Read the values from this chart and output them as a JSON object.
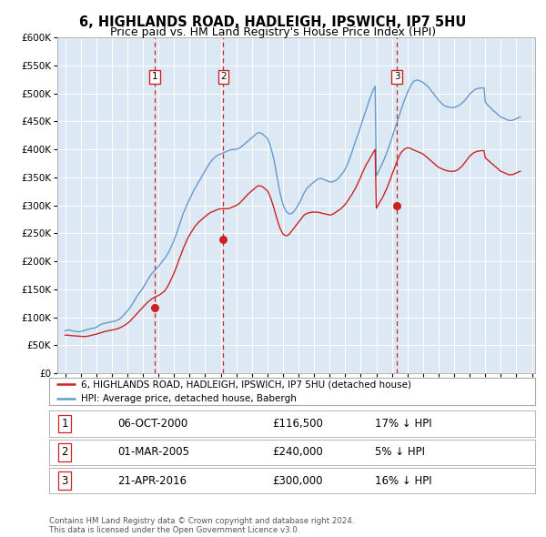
{
  "title": "6, HIGHLANDS ROAD, HADLEIGH, IPSWICH, IP7 5HU",
  "subtitle": "Price paid vs. HM Land Registry's House Price Index (HPI)",
  "background_color": "#ffffff",
  "plot_bg_color": "#dce9f5",
  "grid_color": "#ffffff",
  "hpi_color": "#6699cc",
  "price_color": "#cc2222",
  "dashed_line_color": "#cc2222",
  "sales": [
    {
      "date_num": 2000.77,
      "price": 116500,
      "label": "1"
    },
    {
      "date_num": 2005.17,
      "price": 240000,
      "label": "2"
    },
    {
      "date_num": 2016.31,
      "price": 300000,
      "label": "3"
    }
  ],
  "sale_labels_info": [
    {
      "num": "1",
      "date": "06-OCT-2000",
      "price": "£116,500",
      "pct": "17% ↓ HPI"
    },
    {
      "num": "2",
      "date": "01-MAR-2005",
      "price": "£240,000",
      "pct": "5% ↓ HPI"
    },
    {
      "num": "3",
      "date": "21-APR-2016",
      "price": "£300,000",
      "pct": "16% ↓ HPI"
    }
  ],
  "legend_entries": [
    "6, HIGHLANDS ROAD, HADLEIGH, IPSWICH, IP7 5HU (detached house)",
    "HPI: Average price, detached house, Babergh"
  ],
  "footer": "Contains HM Land Registry data © Crown copyright and database right 2024.\nThis data is licensed under the Open Government Licence v3.0.",
  "xmin": 1994.5,
  "xmax": 2025.2,
  "ymin": 0,
  "ymax": 600000,
  "yticks": [
    0,
    50000,
    100000,
    150000,
    200000,
    250000,
    300000,
    350000,
    400000,
    450000,
    500000,
    550000,
    600000
  ],
  "hpi_data_years": [
    1995.0,
    1995.08,
    1995.17,
    1995.25,
    1995.33,
    1995.42,
    1995.5,
    1995.58,
    1995.67,
    1995.75,
    1995.83,
    1995.92,
    1996.0,
    1996.08,
    1996.17,
    1996.25,
    1996.33,
    1996.42,
    1996.5,
    1996.58,
    1996.67,
    1996.75,
    1996.83,
    1996.92,
    1997.0,
    1997.08,
    1997.17,
    1997.25,
    1997.33,
    1997.42,
    1997.5,
    1997.58,
    1997.67,
    1997.75,
    1997.83,
    1997.92,
    1998.0,
    1998.08,
    1998.17,
    1998.25,
    1998.33,
    1998.42,
    1998.5,
    1998.58,
    1998.67,
    1998.75,
    1998.83,
    1998.92,
    1999.0,
    1999.08,
    1999.17,
    1999.25,
    1999.33,
    1999.42,
    1999.5,
    1999.58,
    1999.67,
    1999.75,
    1999.83,
    1999.92,
    2000.0,
    2000.08,
    2000.17,
    2000.25,
    2000.33,
    2000.42,
    2000.5,
    2000.58,
    2000.67,
    2000.75,
    2000.83,
    2000.92,
    2001.0,
    2001.08,
    2001.17,
    2001.25,
    2001.33,
    2001.42,
    2001.5,
    2001.58,
    2001.67,
    2001.75,
    2001.83,
    2001.92,
    2002.0,
    2002.08,
    2002.17,
    2002.25,
    2002.33,
    2002.42,
    2002.5,
    2002.58,
    2002.67,
    2002.75,
    2002.83,
    2002.92,
    2003.0,
    2003.08,
    2003.17,
    2003.25,
    2003.33,
    2003.42,
    2003.5,
    2003.58,
    2003.67,
    2003.75,
    2003.83,
    2003.92,
    2004.0,
    2004.08,
    2004.17,
    2004.25,
    2004.33,
    2004.42,
    2004.5,
    2004.58,
    2004.67,
    2004.75,
    2004.83,
    2004.92,
    2005.0,
    2005.08,
    2005.17,
    2005.25,
    2005.33,
    2005.42,
    2005.5,
    2005.58,
    2005.67,
    2005.75,
    2005.83,
    2005.92,
    2006.0,
    2006.08,
    2006.17,
    2006.25,
    2006.33,
    2006.42,
    2006.5,
    2006.58,
    2006.67,
    2006.75,
    2006.83,
    2006.92,
    2007.0,
    2007.08,
    2007.17,
    2007.25,
    2007.33,
    2007.42,
    2007.5,
    2007.58,
    2007.67,
    2007.75,
    2007.83,
    2007.92,
    2008.0,
    2008.08,
    2008.17,
    2008.25,
    2008.33,
    2008.42,
    2008.5,
    2008.58,
    2008.67,
    2008.75,
    2008.83,
    2008.92,
    2009.0,
    2009.08,
    2009.17,
    2009.25,
    2009.33,
    2009.42,
    2009.5,
    2009.58,
    2009.67,
    2009.75,
    2009.83,
    2009.92,
    2010.0,
    2010.08,
    2010.17,
    2010.25,
    2010.33,
    2010.42,
    2010.5,
    2010.58,
    2010.67,
    2010.75,
    2010.83,
    2010.92,
    2011.0,
    2011.08,
    2011.17,
    2011.25,
    2011.33,
    2011.42,
    2011.5,
    2011.58,
    2011.67,
    2011.75,
    2011.83,
    2011.92,
    2012.0,
    2012.08,
    2012.17,
    2012.25,
    2012.33,
    2012.42,
    2012.5,
    2012.58,
    2012.67,
    2012.75,
    2012.83,
    2012.92,
    2013.0,
    2013.08,
    2013.17,
    2013.25,
    2013.33,
    2013.42,
    2013.5,
    2013.58,
    2013.67,
    2013.75,
    2013.83,
    2013.92,
    2014.0,
    2014.08,
    2014.17,
    2014.25,
    2014.33,
    2014.42,
    2014.5,
    2014.58,
    2014.67,
    2014.75,
    2014.83,
    2014.92,
    2015.0,
    2015.08,
    2015.17,
    2015.25,
    2015.33,
    2015.42,
    2015.5,
    2015.58,
    2015.67,
    2015.75,
    2015.83,
    2015.92,
    2016.0,
    2016.08,
    2016.17,
    2016.25,
    2016.33,
    2016.42,
    2016.5,
    2016.58,
    2016.67,
    2016.75,
    2016.83,
    2016.92,
    2017.0,
    2017.08,
    2017.17,
    2017.25,
    2017.33,
    2017.42,
    2017.5,
    2017.58,
    2017.67,
    2017.75,
    2017.83,
    2017.92,
    2018.0,
    2018.08,
    2018.17,
    2018.25,
    2018.33,
    2018.42,
    2018.5,
    2018.58,
    2018.67,
    2018.75,
    2018.83,
    2018.92,
    2019.0,
    2019.08,
    2019.17,
    2019.25,
    2019.33,
    2019.42,
    2019.5,
    2019.58,
    2019.67,
    2019.75,
    2019.83,
    2019.92,
    2020.0,
    2020.08,
    2020.17,
    2020.25,
    2020.33,
    2020.42,
    2020.5,
    2020.58,
    2020.67,
    2020.75,
    2020.83,
    2020.92,
    2021.0,
    2021.08,
    2021.17,
    2021.25,
    2021.33,
    2021.42,
    2021.5,
    2021.58,
    2021.67,
    2021.75,
    2021.83,
    2021.92,
    2022.0,
    2022.08,
    2022.17,
    2022.25,
    2022.33,
    2022.42,
    2022.5,
    2022.58,
    2022.67,
    2022.75,
    2022.83,
    2022.92,
    2023.0,
    2023.08,
    2023.17,
    2023.25,
    2023.33,
    2023.42,
    2023.5,
    2023.58,
    2023.67,
    2023.75,
    2023.83,
    2023.92,
    2024.0,
    2024.08,
    2024.17,
    2024.25
  ],
  "hpi_data_values": [
    76000,
    76500,
    77000,
    77500,
    76800,
    76200,
    75600,
    75200,
    74800,
    74500,
    74200,
    74000,
    74500,
    75200,
    75800,
    76500,
    77200,
    77800,
    78500,
    79200,
    79800,
    80200,
    80600,
    81000,
    82000,
    83500,
    85000,
    86500,
    87500,
    88500,
    89000,
    89500,
    90000,
    90500,
    91000,
    91500,
    92000,
    92500,
    93000,
    93500,
    94500,
    95800,
    97000,
    99000,
    101000,
    103500,
    106000,
    108500,
    111000,
    114000,
    117000,
    120500,
    124000,
    128000,
    132000,
    136000,
    140000,
    143000,
    146000,
    149000,
    152000,
    156000,
    160000,
    164000,
    168000,
    172000,
    175500,
    178500,
    181000,
    183500,
    186000,
    188500,
    191000,
    194000,
    197000,
    200000,
    203000,
    206000,
    209000,
    213000,
    217000,
    222000,
    227000,
    232000,
    238000,
    244000,
    250000,
    257000,
    264000,
    271000,
    278000,
    285000,
    291000,
    296000,
    301000,
    306000,
    311000,
    316000,
    321000,
    326000,
    330000,
    334000,
    338000,
    342000,
    346000,
    350000,
    354000,
    358000,
    362000,
    366000,
    370000,
    374000,
    377000,
    380000,
    383000,
    385000,
    387000,
    389000,
    390000,
    391000,
    392000,
    393000,
    394000,
    395000,
    396000,
    397000,
    398000,
    399000,
    399500,
    400000,
    400000,
    400000,
    400500,
    401000,
    402000,
    403500,
    405000,
    407000,
    409000,
    411000,
    413000,
    415000,
    417000,
    419000,
    421000,
    423000,
    425000,
    427000,
    429000,
    430000,
    430000,
    429000,
    428000,
    426000,
    424000,
    422000,
    420000,
    415000,
    408000,
    400000,
    392000,
    382000,
    370000,
    357000,
    344000,
    331000,
    320000,
    310000,
    302000,
    296000,
    291000,
    288000,
    286000,
    285000,
    285000,
    286000,
    288000,
    291000,
    294000,
    298000,
    302000,
    306000,
    311000,
    316000,
    321000,
    325000,
    329000,
    332000,
    334000,
    336000,
    338000,
    340000,
    342000,
    344000,
    346000,
    347000,
    348000,
    348000,
    348000,
    347000,
    346000,
    345000,
    344000,
    343000,
    342000,
    342000,
    342000,
    343000,
    344000,
    345000,
    347000,
    349000,
    352000,
    355000,
    358000,
    361000,
    365000,
    370000,
    375000,
    381000,
    387000,
    394000,
    401000,
    408000,
    415000,
    421000,
    428000,
    435000,
    442000,
    449000,
    456000,
    463000,
    470000,
    477000,
    484000,
    491000,
    497000,
    503000,
    508000,
    513000,
    353000,
    357000,
    362000,
    367000,
    372000,
    377000,
    382000,
    388000,
    394000,
    400000,
    407000,
    414000,
    421000,
    428000,
    435000,
    442000,
    449000,
    456000,
    463000,
    470000,
    477000,
    484000,
    490000,
    496000,
    502000,
    507000,
    512000,
    516000,
    519000,
    522000,
    523000,
    524000,
    524000,
    523000,
    522000,
    521000,
    520000,
    518000,
    516000,
    514000,
    512000,
    509000,
    506000,
    503000,
    500000,
    497000,
    494000,
    491000,
    488000,
    486000,
    483000,
    481000,
    479000,
    478000,
    477000,
    476000,
    476000,
    475000,
    475000,
    475000,
    475000,
    476000,
    477000,
    478000,
    479000,
    481000,
    483000,
    485000,
    487000,
    490000,
    493000,
    496000,
    499000,
    501000,
    503000,
    505000,
    507000,
    508000,
    509000,
    509000,
    510000,
    510000,
    510000,
    510000,
    485000,
    482000,
    479000,
    477000,
    475000,
    472000,
    470000,
    468000,
    466000,
    464000,
    462000,
    460000,
    458000,
    457000,
    456000,
    455000,
    454000,
    453000,
    452000,
    452000,
    452000,
    452000,
    453000,
    454000,
    455000,
    456000,
    457000,
    458000,
    460000,
    461000,
    462000,
    463000,
    464000,
    465000,
    466000,
    467000
  ],
  "price_data_years": [
    1995.0,
    1995.08,
    1995.17,
    1995.25,
    1995.33,
    1995.42,
    1995.5,
    1995.58,
    1995.67,
    1995.75,
    1995.83,
    1995.92,
    1996.0,
    1996.08,
    1996.17,
    1996.25,
    1996.33,
    1996.42,
    1996.5,
    1996.58,
    1996.67,
    1996.75,
    1996.83,
    1996.92,
    1997.0,
    1997.08,
    1997.17,
    1997.25,
    1997.33,
    1997.42,
    1997.5,
    1997.58,
    1997.67,
    1997.75,
    1997.83,
    1997.92,
    1998.0,
    1998.08,
    1998.17,
    1998.25,
    1998.33,
    1998.42,
    1998.5,
    1998.58,
    1998.67,
    1998.75,
    1998.83,
    1998.92,
    1999.0,
    1999.08,
    1999.17,
    1999.25,
    1999.33,
    1999.42,
    1999.5,
    1999.58,
    1999.67,
    1999.75,
    1999.83,
    1999.92,
    2000.0,
    2000.08,
    2000.17,
    2000.25,
    2000.33,
    2000.42,
    2000.5,
    2000.58,
    2000.67,
    2000.75,
    2000.83,
    2000.92,
    2001.0,
    2001.08,
    2001.17,
    2001.25,
    2001.33,
    2001.42,
    2001.5,
    2001.58,
    2001.67,
    2001.75,
    2001.83,
    2001.92,
    2002.0,
    2002.08,
    2002.17,
    2002.25,
    2002.33,
    2002.42,
    2002.5,
    2002.58,
    2002.67,
    2002.75,
    2002.83,
    2002.92,
    2003.0,
    2003.08,
    2003.17,
    2003.25,
    2003.33,
    2003.42,
    2003.5,
    2003.58,
    2003.67,
    2003.75,
    2003.83,
    2003.92,
    2004.0,
    2004.08,
    2004.17,
    2004.25,
    2004.33,
    2004.42,
    2004.5,
    2004.58,
    2004.67,
    2004.75,
    2004.83,
    2004.92,
    2005.0,
    2005.08,
    2005.17,
    2005.25,
    2005.33,
    2005.42,
    2005.5,
    2005.58,
    2005.67,
    2005.75,
    2005.83,
    2005.92,
    2006.0,
    2006.08,
    2006.17,
    2006.25,
    2006.33,
    2006.42,
    2006.5,
    2006.58,
    2006.67,
    2006.75,
    2006.83,
    2006.92,
    2007.0,
    2007.08,
    2007.17,
    2007.25,
    2007.33,
    2007.42,
    2007.5,
    2007.58,
    2007.67,
    2007.75,
    2007.83,
    2007.92,
    2008.0,
    2008.08,
    2008.17,
    2008.25,
    2008.33,
    2008.42,
    2008.5,
    2008.58,
    2008.67,
    2008.75,
    2008.83,
    2008.92,
    2009.0,
    2009.08,
    2009.17,
    2009.25,
    2009.33,
    2009.42,
    2009.5,
    2009.58,
    2009.67,
    2009.75,
    2009.83,
    2009.92,
    2010.0,
    2010.08,
    2010.17,
    2010.25,
    2010.33,
    2010.42,
    2010.5,
    2010.58,
    2010.67,
    2010.75,
    2010.83,
    2010.92,
    2011.0,
    2011.08,
    2011.17,
    2011.25,
    2011.33,
    2011.42,
    2011.5,
    2011.58,
    2011.67,
    2011.75,
    2011.83,
    2011.92,
    2012.0,
    2012.08,
    2012.17,
    2012.25,
    2012.33,
    2012.42,
    2012.5,
    2012.58,
    2012.67,
    2012.75,
    2012.83,
    2012.92,
    2013.0,
    2013.08,
    2013.17,
    2013.25,
    2013.33,
    2013.42,
    2013.5,
    2013.58,
    2013.67,
    2013.75,
    2013.83,
    2013.92,
    2014.0,
    2014.08,
    2014.17,
    2014.25,
    2014.33,
    2014.42,
    2014.5,
    2014.58,
    2014.67,
    2014.75,
    2014.83,
    2014.92,
    2015.0,
    2015.08,
    2015.17,
    2015.25,
    2015.33,
    2015.42,
    2015.5,
    2015.58,
    2015.67,
    2015.75,
    2015.83,
    2015.92,
    2016.0,
    2016.08,
    2016.17,
    2016.25,
    2016.33,
    2016.42,
    2016.5,
    2016.58,
    2016.67,
    2016.75,
    2016.83,
    2016.92,
    2017.0,
    2017.08,
    2017.17,
    2017.25,
    2017.33,
    2017.42,
    2017.5,
    2017.58,
    2017.67,
    2017.75,
    2017.83,
    2017.92,
    2018.0,
    2018.08,
    2018.17,
    2018.25,
    2018.33,
    2018.42,
    2018.5,
    2018.58,
    2018.67,
    2018.75,
    2018.83,
    2018.92,
    2019.0,
    2019.08,
    2019.17,
    2019.25,
    2019.33,
    2019.42,
    2019.5,
    2019.58,
    2019.67,
    2019.75,
    2019.83,
    2019.92,
    2020.0,
    2020.08,
    2020.17,
    2020.25,
    2020.33,
    2020.42,
    2020.5,
    2020.58,
    2020.67,
    2020.75,
    2020.83,
    2020.92,
    2021.0,
    2021.08,
    2021.17,
    2021.25,
    2021.33,
    2021.42,
    2021.5,
    2021.58,
    2021.67,
    2021.75,
    2021.83,
    2021.92,
    2022.0,
    2022.08,
    2022.17,
    2022.25,
    2022.33,
    2022.42,
    2022.5,
    2022.58,
    2022.67,
    2022.75,
    2022.83,
    2022.92,
    2023.0,
    2023.08,
    2023.17,
    2023.25,
    2023.33,
    2023.42,
    2023.5,
    2023.58,
    2023.67,
    2023.75,
    2023.83,
    2023.92,
    2024.0,
    2024.08,
    2024.17,
    2024.25
  ],
  "price_data_values": [
    68000,
    68200,
    68000,
    67800,
    67500,
    67200,
    67000,
    66800,
    66700,
    66500,
    66300,
    66000,
    65800,
    65700,
    65600,
    65500,
    65700,
    66000,
    66500,
    67000,
    67500,
    68000,
    68500,
    69000,
    69800,
    70500,
    71200,
    72000,
    72800,
    73500,
    74200,
    74800,
    75300,
    75800,
    76200,
    76600,
    77000,
    77500,
    78000,
    78600,
    79300,
    80000,
    81000,
    82000,
    83200,
    84500,
    86000,
    87500,
    89000,
    91000,
    93000,
    95500,
    98000,
    100500,
    103000,
    105500,
    108000,
    110500,
    113000,
    115500,
    118000,
    120500,
    123000,
    125500,
    127500,
    129500,
    131500,
    133000,
    134500,
    136000,
    137000,
    138000,
    139000,
    140500,
    142000,
    143500,
    145500,
    148000,
    151000,
    155000,
    159000,
    164000,
    169000,
    174000,
    179000,
    185000,
    191000,
    197500,
    204000,
    210000,
    216000,
    222000,
    228000,
    233500,
    238500,
    243000,
    247000,
    251000,
    255000,
    258500,
    262000,
    265000,
    267500,
    270000,
    272000,
    274000,
    276000,
    278000,
    280000,
    282000,
    284000,
    285500,
    287000,
    288000,
    289000,
    290000,
    291000,
    292000,
    293000,
    293500,
    294000,
    294000,
    294000,
    294000,
    294000,
    294000,
    294500,
    295000,
    296000,
    297000,
    298000,
    299000,
    300000,
    301500,
    303000,
    305000,
    307500,
    310000,
    312500,
    315000,
    317500,
    320000,
    322000,
    324000,
    326000,
    328000,
    330000,
    332000,
    334000,
    335000,
    335000,
    334500,
    333500,
    332000,
    330000,
    328000,
    326000,
    322000,
    316000,
    310000,
    303000,
    295000,
    287000,
    279000,
    271000,
    264000,
    258000,
    253000,
    249000,
    247000,
    246000,
    246000,
    247000,
    249000,
    252000,
    255000,
    258000,
    261000,
    264000,
    267000,
    270000,
    273000,
    276000,
    279000,
    282000,
    284000,
    285000,
    286000,
    287000,
    287000,
    288000,
    288000,
    288000,
    288000,
    288000,
    288000,
    287000,
    287000,
    286000,
    285500,
    285000,
    284500,
    284000,
    283500,
    283000,
    283000,
    284000,
    285000,
    286500,
    288000,
    289500,
    291000,
    293000,
    295000,
    297000,
    299500,
    302000,
    305000,
    308500,
    312000,
    315500,
    319000,
    323000,
    327000,
    331000,
    336000,
    341000,
    346000,
    351000,
    357000,
    362000,
    367000,
    372000,
    376000,
    380000,
    384000,
    388000,
    392000,
    396000,
    400000,
    295000,
    299000,
    303000,
    307000,
    311000,
    315000,
    320000,
    325000,
    330000,
    336000,
    342000,
    348000,
    355000,
    361000,
    367000,
    373000,
    379000,
    385000,
    390000,
    394000,
    397000,
    399000,
    401000,
    402000,
    403000,
    403000,
    402000,
    401000,
    400000,
    399000,
    398000,
    397000,
    396000,
    395000,
    394000,
    393000,
    392000,
    390000,
    388000,
    386000,
    384000,
    382000,
    380000,
    378000,
    376000,
    374000,
    372000,
    370000,
    368000,
    367000,
    366000,
    365000,
    364000,
    363000,
    362000,
    362000,
    361000,
    361000,
    361000,
    361000,
    361000,
    362000,
    363000,
    364000,
    366000,
    368000,
    370000,
    373000,
    376000,
    379000,
    382000,
    385000,
    388000,
    390000,
    392000,
    394000,
    395000,
    396000,
    397000,
    397000,
    397500,
    398000,
    398000,
    398000,
    385000,
    383000,
    381000,
    379000,
    377000,
    375000,
    373000,
    371000,
    369000,
    367000,
    365000,
    363000,
    361000,
    360000,
    359000,
    358000,
    357000,
    356000,
    355000,
    355000,
    355000,
    355000,
    356000,
    357000,
    358000,
    359000,
    360000,
    361000,
    362000,
    364000,
    365000,
    366000,
    368000,
    369000,
    370000,
    372000
  ]
}
